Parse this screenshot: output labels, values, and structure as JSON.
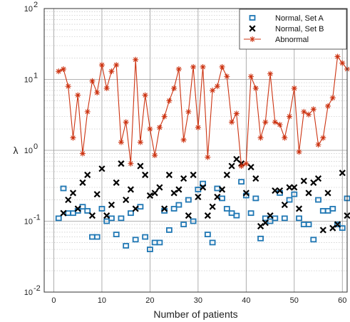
{
  "chart_data": {
    "type": "scatter",
    "title": "",
    "xlabel": "Number of patients",
    "ylabel": "λ",
    "xlim": [
      -2,
      61
    ],
    "ylim": [
      0.01,
      100
    ],
    "yscale": "log",
    "grid": true,
    "legend_position": "top-right",
    "x_ticks": [
      0,
      10,
      20,
      30,
      40,
      50,
      60
    ],
    "y_ticks": [
      {
        "value": 0.01,
        "base": "10",
        "exp": "-2"
      },
      {
        "value": 0.1,
        "base": "10",
        "exp": "-1"
      },
      {
        "value": 1,
        "base": "10",
        "exp": "0"
      },
      {
        "value": 10,
        "base": "10",
        "exp": "1"
      },
      {
        "value": 100,
        "base": "10",
        "exp": "2"
      }
    ],
    "series": [
      {
        "name": "Normal, Set A",
        "marker": "square",
        "color": "#1f77b4",
        "x": [
          1,
          2,
          3,
          4,
          5,
          6,
          7,
          8,
          9,
          10,
          11,
          12,
          13,
          14,
          15,
          16,
          17,
          18,
          19,
          20,
          21,
          22,
          23,
          24,
          25,
          26,
          27,
          28,
          29,
          30,
          31,
          32,
          33,
          34,
          35,
          36,
          37,
          38,
          39,
          40,
          41,
          42,
          43,
          44,
          45,
          46,
          47,
          48,
          49,
          50,
          51,
          52,
          53,
          54,
          55,
          56,
          57,
          58,
          59,
          60,
          61
        ],
        "y": [
          0.11,
          0.29,
          0.13,
          0.13,
          0.14,
          0.16,
          0.14,
          0.06,
          0.06,
          0.15,
          0.1,
          0.11,
          0.065,
          0.11,
          0.045,
          0.13,
          0.055,
          0.16,
          0.06,
          0.04,
          0.05,
          0.05,
          0.14,
          0.075,
          0.15,
          0.17,
          0.09,
          0.2,
          0.1,
          0.28,
          0.34,
          0.065,
          0.05,
          0.29,
          0.21,
          0.15,
          0.13,
          0.12,
          0.36,
          0.23,
          0.13,
          0.21,
          0.057,
          0.11,
          0.1,
          0.11,
          0.25,
          0.11,
          0.2,
          0.24,
          0.11,
          0.09,
          0.09,
          0.055,
          0.2,
          0.14,
          0.14,
          0.15,
          0.09,
          0.08,
          0.21
        ]
      },
      {
        "name": "Normal, Set B",
        "marker": "x",
        "color": "#000000",
        "x": [
          2,
          3,
          4,
          5,
          6,
          7,
          8,
          9,
          10,
          11,
          12,
          13,
          14,
          15,
          16,
          17,
          18,
          19,
          20,
          21,
          22,
          23,
          24,
          25,
          26,
          27,
          28,
          29,
          30,
          31,
          32,
          33,
          34,
          35,
          36,
          37,
          38,
          39,
          40,
          41,
          42,
          43,
          44,
          45,
          46,
          47,
          48,
          49,
          50,
          51,
          52,
          53,
          54,
          55,
          56,
          57,
          58,
          59,
          60,
          61
        ],
        "y": [
          0.13,
          0.2,
          0.25,
          0.15,
          0.35,
          0.45,
          0.12,
          0.24,
          0.55,
          0.12,
          0.17,
          0.35,
          0.65,
          0.2,
          0.28,
          0.15,
          0.6,
          0.45,
          0.23,
          0.25,
          0.3,
          0.15,
          0.45,
          0.25,
          0.28,
          0.4,
          0.12,
          0.45,
          0.22,
          0.3,
          0.12,
          0.16,
          0.22,
          0.28,
          0.45,
          0.6,
          0.75,
          0.65,
          0.25,
          0.58,
          0.4,
          0.085,
          0.095,
          0.12,
          0.27,
          0.27,
          0.17,
          0.3,
          0.3,
          0.15,
          0.37,
          0.25,
          0.35,
          0.4,
          0.075,
          0.25,
          0.08,
          0.09,
          0.48,
          0.12
        ]
      },
      {
        "name": "Abnormal",
        "marker": "star",
        "line": true,
        "color": "#cc3311",
        "x": [
          1,
          2,
          3,
          4,
          5,
          6,
          7,
          8,
          9,
          10,
          11,
          12,
          13,
          14,
          15,
          16,
          17,
          18,
          19,
          20,
          21,
          22,
          23,
          24,
          25,
          26,
          27,
          28,
          29,
          30,
          31,
          32,
          33,
          34,
          35,
          36,
          37,
          38,
          39,
          40,
          41,
          42,
          43,
          44,
          45,
          46,
          47,
          48,
          49,
          50,
          51,
          52,
          53,
          54,
          55,
          56,
          57,
          58,
          59,
          60,
          61
        ],
        "y": [
          13,
          14,
          8,
          1.5,
          6,
          0.9,
          3.5,
          9.5,
          6.5,
          16,
          7.5,
          13,
          16,
          1.3,
          2.5,
          0.65,
          19,
          1.3,
          6,
          2,
          0.85,
          2.1,
          3,
          5,
          7.5,
          14,
          1.4,
          3.5,
          15,
          2.1,
          15,
          0.8,
          7,
          8,
          15,
          11,
          2.5,
          3.3,
          0.6,
          0.65,
          11,
          7.5,
          1.5,
          2.5,
          12,
          2.5,
          2.3,
          1.5,
          3,
          7.5,
          0.95,
          3.5,
          3.2,
          3.8,
          1.2,
          1.5,
          4.2,
          5.5,
          21,
          17,
          14
        ]
      }
    ]
  }
}
